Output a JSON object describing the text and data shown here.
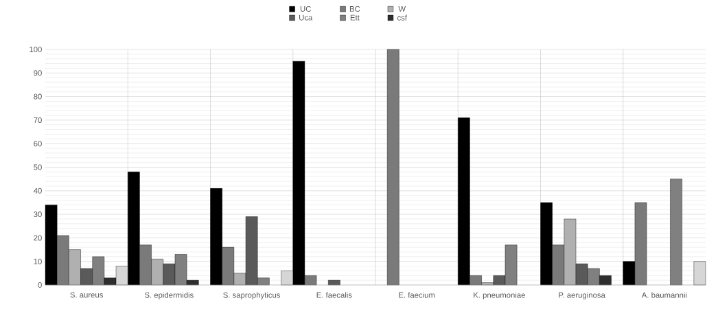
{
  "chart_data": {
    "type": "bar",
    "categories": [
      "S. aureus",
      "S. epidermidis",
      "S. saprophyticus",
      "E. faecalis",
      "E. faecium",
      "K. pneumoniae",
      "P. aeruginosa",
      "A. baumannii"
    ],
    "series": [
      {
        "name": "UC",
        "color": "#000000",
        "values": [
          34,
          48,
          41,
          95,
          null,
          71,
          35,
          10
        ]
      },
      {
        "name": "BC",
        "color": "#7a7a7a",
        "values": [
          21,
          17,
          16,
          4,
          100,
          4,
          17,
          35
        ]
      },
      {
        "name": "W",
        "color": "#b0b0b0",
        "values": [
          15,
          11,
          5,
          null,
          null,
          1,
          28,
          null
        ]
      },
      {
        "name": "Uca",
        "color": "#5a5a5a",
        "values": [
          7,
          9,
          29,
          2,
          null,
          4,
          9,
          null
        ]
      },
      {
        "name": "Ett",
        "color": "#808080",
        "values": [
          12,
          13,
          3,
          null,
          null,
          17,
          7,
          45
        ]
      },
      {
        "name": "csf",
        "color": "#2e2e2e",
        "values": [
          3,
          2,
          null,
          null,
          null,
          null,
          4,
          null
        ]
      },
      {
        "color": "#d6d6d6",
        "values": [
          8,
          null,
          6,
          null,
          null,
          null,
          null,
          10
        ]
      }
    ],
    "ylim": [
      0,
      100
    ],
    "yticks": [
      0,
      10,
      20,
      30,
      40,
      50,
      60,
      70,
      80,
      90,
      100
    ],
    "grid": true,
    "legend": "top"
  }
}
